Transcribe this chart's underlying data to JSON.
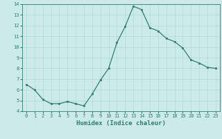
{
  "x": [
    0,
    1,
    2,
    3,
    4,
    5,
    6,
    7,
    8,
    9,
    10,
    11,
    12,
    13,
    14,
    15,
    16,
    17,
    18,
    19,
    20,
    21,
    22,
    23
  ],
  "y": [
    6.5,
    6.0,
    5.1,
    4.7,
    4.7,
    4.9,
    4.7,
    4.5,
    5.6,
    6.9,
    8.0,
    10.4,
    11.9,
    13.8,
    13.5,
    11.8,
    11.5,
    10.8,
    10.5,
    9.9,
    8.8,
    8.5,
    8.1,
    8.0
  ],
  "xlabel": "Humidex (Indice chaleur)",
  "ylim": [
    4,
    14
  ],
  "xlim_min": -0.5,
  "xlim_max": 23.5,
  "yticks": [
    4,
    5,
    6,
    7,
    8,
    9,
    10,
    11,
    12,
    13,
    14
  ],
  "xticks": [
    0,
    1,
    2,
    3,
    4,
    5,
    6,
    7,
    8,
    9,
    10,
    11,
    12,
    13,
    14,
    15,
    16,
    17,
    18,
    19,
    20,
    21,
    22,
    23
  ],
  "line_color": "#2e7d6e",
  "marker_color": "#2e7d6e",
  "bg_color": "#cceaea",
  "grid_color": "#b0d8d4",
  "xlabel_color": "#2e7d6e",
  "tick_color": "#2e7d6e",
  "tick_fontsize": 5.0,
  "xlabel_fontsize": 6.5
}
